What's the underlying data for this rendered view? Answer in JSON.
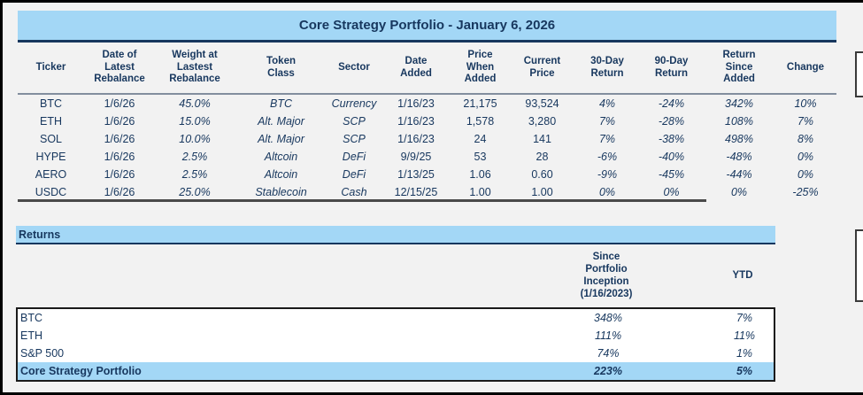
{
  "title": "Core Strategy Portfolio - January 6, 2026",
  "holdings": {
    "headers": [
      "Ticker",
      "Date of\nLatest\nRebalance",
      "Weight at\nLastest\nRebalance",
      "Token\nClass",
      "Sector",
      "Date\nAdded",
      "Price\nWhen\nAdded",
      "Current\nPrice",
      "30-Day\nReturn",
      "90-Day\nReturn",
      "Return\nSince\nAdded",
      "Change"
    ],
    "rows": [
      [
        "BTC",
        "1/6/26",
        "45.0%",
        "BTC",
        "Currency",
        "1/16/23",
        "21,175",
        "93,524",
        "4%",
        "-24%",
        "342%",
        "10%"
      ],
      [
        "ETH",
        "1/6/26",
        "15.0%",
        "Alt. Major",
        "SCP",
        "1/16/23",
        "1,578",
        "3,280",
        "7%",
        "-28%",
        "108%",
        "7%"
      ],
      [
        "SOL",
        "1/6/26",
        "10.0%",
        "Alt. Major",
        "SCP",
        "1/16/23",
        "24",
        "141",
        "7%",
        "-38%",
        "498%",
        "8%"
      ],
      [
        "HYPE",
        "1/6/26",
        "2.5%",
        "Altcoin",
        "DeFi",
        "9/9/25",
        "53",
        "28",
        "-6%",
        "-40%",
        "-48%",
        "0%"
      ],
      [
        "AERO",
        "1/6/26",
        "2.5%",
        "Altcoin",
        "DeFi",
        "1/13/25",
        "1.06",
        "0.60",
        "-9%",
        "-45%",
        "-44%",
        "0%"
      ],
      [
        "USDC",
        "1/6/26",
        "25.0%",
        "Stablecoin",
        "Cash",
        "12/15/25",
        "1.00",
        "1.00",
        "0%",
        "0%",
        "0%",
        "-25%"
      ]
    ]
  },
  "returns": {
    "section_label": "Returns",
    "col_headers": {
      "inception": "Since\nPortfolio\nInception\n(1/16/2023)",
      "ytd": "YTD"
    },
    "rows": [
      {
        "label": "BTC",
        "inception": "348%",
        "ytd": "7%",
        "total": false
      },
      {
        "label": "ETH",
        "inception": "111%",
        "ytd": "11%",
        "total": false
      },
      {
        "label": "S&P 500",
        "inception": "74%",
        "ytd": "1%",
        "total": false
      },
      {
        "label": "Core Strategy Portfolio",
        "inception": "223%",
        "ytd": "5%",
        "total": true
      }
    ]
  },
  "colors": {
    "accent_blue": "#A3D7F6",
    "navy_text": "#17375E",
    "positive": "#008000",
    "negative": "#FF0000",
    "neutral": "#111111"
  }
}
